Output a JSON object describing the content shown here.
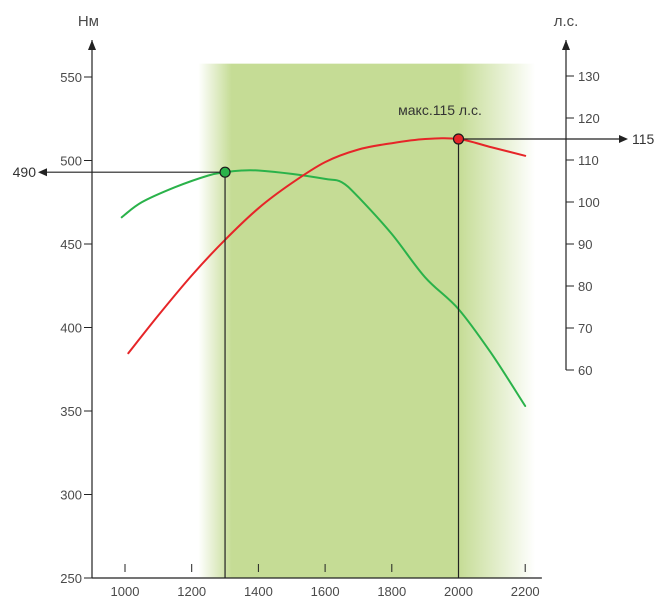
{
  "chart_data": {
    "type": "line",
    "x_ticks": [
      1000,
      1200,
      1400,
      1600,
      1800,
      2000,
      2200
    ],
    "y_left": {
      "label": "Нм",
      "ticks": [
        250,
        300,
        350,
        400,
        450,
        500,
        550
      ],
      "range": [
        250,
        570
      ]
    },
    "y_right": {
      "label": "л.с.",
      "ticks": [
        60,
        70,
        80,
        90,
        100,
        110,
        120,
        130
      ],
      "range": [
        60,
        135
      ]
    },
    "x_range": [
      900,
      2250
    ],
    "highlight_band": {
      "from": 1220,
      "to": 2230,
      "core_from": 1320,
      "core_to": 2000,
      "color": "#c5dc95"
    },
    "series": [
      {
        "axis": "left",
        "color": "#2ab24a",
        "points": [
          [
            990,
            466
          ],
          [
            1050,
            475
          ],
          [
            1150,
            484
          ],
          [
            1250,
            491
          ],
          [
            1300,
            493
          ],
          [
            1350,
            494
          ],
          [
            1400,
            494
          ],
          [
            1500,
            492
          ],
          [
            1600,
            489
          ],
          [
            1650,
            487
          ],
          [
            1700,
            478
          ],
          [
            1800,
            456
          ],
          [
            1900,
            430
          ],
          [
            2000,
            411
          ],
          [
            2100,
            384
          ],
          [
            2200,
            353
          ]
        ]
      },
      {
        "axis": "right",
        "color": "#e62528",
        "points": [
          [
            1010,
            64
          ],
          [
            1100,
            73
          ],
          [
            1200,
            82.5
          ],
          [
            1300,
            91
          ],
          [
            1400,
            98.5
          ],
          [
            1500,
            104.5
          ],
          [
            1600,
            109.5
          ],
          [
            1700,
            112.5
          ],
          [
            1800,
            114
          ],
          [
            1900,
            115
          ],
          [
            2000,
            115
          ],
          [
            2100,
            113
          ],
          [
            2200,
            111
          ]
        ]
      }
    ],
    "markers": [
      {
        "series": 0,
        "x": 1300,
        "y": 493,
        "fill": "#2ab24a",
        "ref_direction": "left",
        "ref_label": "490"
      },
      {
        "series": 1,
        "x": 2000,
        "y": 115,
        "fill": "#e62528",
        "ref_direction": "right",
        "ref_label": "115",
        "annotation": "макс.115 л.с."
      }
    ]
  }
}
